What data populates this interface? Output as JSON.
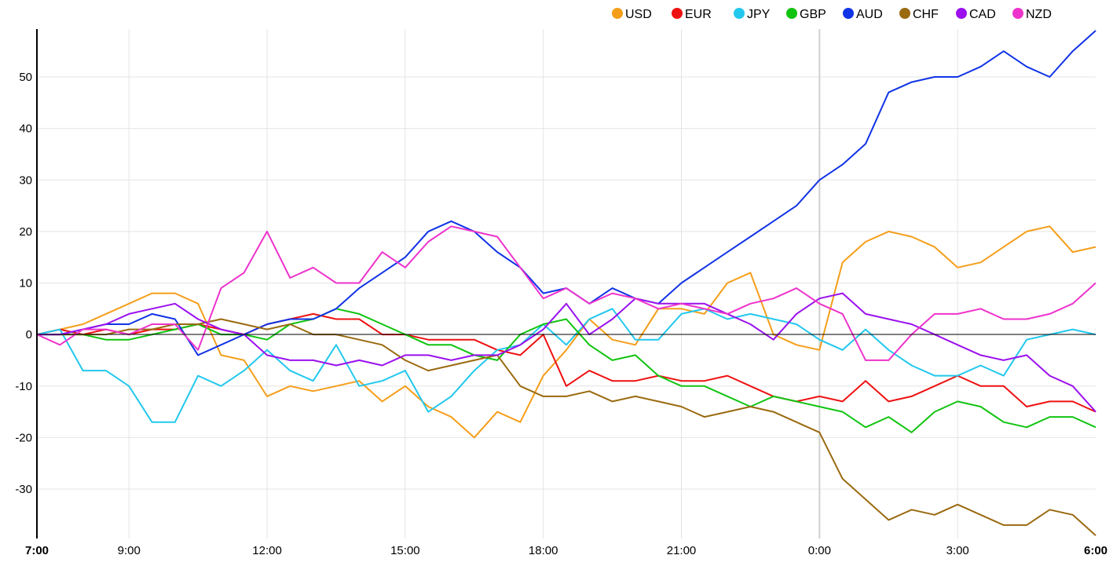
{
  "chart_data": {
    "type": "line",
    "title": "",
    "xlabel": "",
    "ylabel": "",
    "x": [
      "7:00",
      "7:30",
      "8:00",
      "8:30",
      "9:00",
      "9:30",
      "10:00",
      "10:30",
      "11:00",
      "11:30",
      "12:00",
      "12:30",
      "13:00",
      "13:30",
      "14:00",
      "14:30",
      "15:00",
      "15:30",
      "16:00",
      "16:30",
      "17:00",
      "17:30",
      "18:00",
      "18:30",
      "19:00",
      "19:30",
      "20:00",
      "20:30",
      "21:00",
      "21:30",
      "22:00",
      "22:30",
      "23:00",
      "23:30",
      "0:00",
      "0:30",
      "1:00",
      "1:30",
      "2:00",
      "2:30",
      "3:00",
      "3:30",
      "4:00",
      "4:30",
      "5:00",
      "5:30",
      "6:00"
    ],
    "x_ticks": [
      {
        "label": "7:00",
        "index": 0,
        "bold": true
      },
      {
        "label": "9:00",
        "index": 4,
        "bold": false
      },
      {
        "label": "12:00",
        "index": 10,
        "bold": false
      },
      {
        "label": "15:00",
        "index": 16,
        "bold": false
      },
      {
        "label": "18:00",
        "index": 22,
        "bold": false
      },
      {
        "label": "21:00",
        "index": 28,
        "bold": false
      },
      {
        "label": "0:00",
        "index": 34,
        "bold": false
      },
      {
        "label": "3:00",
        "index": 40,
        "bold": false
      },
      {
        "label": "6:00",
        "index": 46,
        "bold": true
      }
    ],
    "y_ticks": [
      -30,
      -20,
      -10,
      0,
      10,
      20,
      30,
      40,
      50
    ],
    "ylim": [
      -39.6,
      59.3
    ],
    "grid": true,
    "legend_position": "top-right",
    "series": [
      {
        "name": "USD",
        "color": "#f59e1a",
        "values": [
          0,
          1,
          2,
          4,
          6,
          8,
          8,
          6,
          -4,
          -5,
          -12,
          -10,
          -11,
          -10,
          -9,
          -13,
          -10,
          -14,
          -16,
          -20,
          -15,
          -17,
          -8,
          -3,
          3,
          -1,
          -2,
          5,
          5,
          4,
          10,
          12,
          0,
          -2,
          -3,
          14,
          18,
          20,
          19,
          17,
          13,
          14,
          17,
          20,
          21,
          16,
          17
        ]
      },
      {
        "name": "EUR",
        "color": "#ee1111",
        "values": [
          0,
          1,
          0,
          1,
          0,
          1,
          1,
          2,
          1,
          0,
          2,
          3,
          4,
          3,
          3,
          0,
          0,
          -1,
          -1,
          -1,
          -3,
          -4,
          0,
          -10,
          -7,
          -9,
          -9,
          -8,
          -9,
          -9,
          -8,
          -10,
          -12,
          -13,
          -12,
          -13,
          -9,
          -13,
          -12,
          -10,
          -8,
          -10,
          -10,
          -14,
          -13,
          -13,
          -15
        ]
      },
      {
        "name": "JPY",
        "color": "#22c8ee",
        "values": [
          0,
          1,
          -7,
          -7,
          -10,
          -17,
          -17,
          -8,
          -10,
          -7,
          -3,
          -7,
          -9,
          -2,
          -10,
          -9,
          -7,
          -15,
          -12,
          -7,
          -3,
          -2,
          2,
          -2,
          3,
          5,
          -1,
          -1,
          4,
          5,
          3,
          4,
          3,
          2,
          -1,
          -3,
          1,
          -3,
          -6,
          -8,
          -8,
          -6,
          -8,
          -1,
          0,
          1,
          0
        ]
      },
      {
        "name": "GBP",
        "color": "#11c411",
        "values": [
          0,
          0,
          0,
          -1,
          -1,
          0,
          1,
          2,
          0,
          0,
          -1,
          2,
          3,
          5,
          4,
          2,
          0,
          -2,
          -2,
          -4,
          -5,
          0,
          2,
          3,
          -2,
          -5,
          -4,
          -8,
          -10,
          -10,
          -12,
          -14,
          -12,
          -13,
          -14,
          -15,
          -18,
          -16,
          -19,
          -15,
          -13,
          -14,
          -17,
          -18,
          -16,
          -16,
          -18
        ]
      },
      {
        "name": "AUD",
        "color": "#1133e6",
        "values": [
          0,
          0,
          1,
          2,
          2,
          4,
          3,
          -4,
          -2,
          0,
          2,
          3,
          3,
          5,
          9,
          12,
          15,
          20,
          22,
          20,
          16,
          13,
          8,
          9,
          6,
          9,
          7,
          6,
          10,
          13,
          16,
          19,
          22,
          25,
          30,
          33,
          37,
          47,
          49,
          50,
          50,
          52,
          55,
          52,
          50,
          55,
          59
        ]
      },
      {
        "name": "CHF",
        "color": "#9a6a10",
        "values": [
          0,
          0,
          0,
          0,
          1,
          1,
          2,
          2,
          3,
          2,
          1,
          2,
          0,
          0,
          -1,
          -2,
          -5,
          -7,
          -6,
          -5,
          -4,
          -10,
          -12,
          -12,
          -11,
          -13,
          -12,
          -13,
          -14,
          -16,
          -15,
          -14,
          -15,
          -17,
          -19,
          -28,
          -32,
          -36,
          -34,
          -35,
          -33,
          -35,
          -37,
          -37,
          -34,
          -35,
          -39
        ]
      },
      {
        "name": "CAD",
        "color": "#9b11ee",
        "values": [
          0,
          0,
          1,
          2,
          4,
          5,
          6,
          3,
          1,
          0,
          -4,
          -5,
          -5,
          -6,
          -5,
          -6,
          -4,
          -4,
          -5,
          -4,
          -4,
          -2,
          1,
          6,
          0,
          3,
          7,
          6,
          6,
          6,
          4,
          2,
          -1,
          4,
          7,
          8,
          4,
          3,
          2,
          0,
          -2,
          -4,
          -5,
          -4,
          -8,
          -10,
          -15
        ]
      },
      {
        "name": "NZD",
        "color": "#ee33cc",
        "values": [
          0,
          -2,
          1,
          1,
          0,
          2,
          2,
          -3,
          9,
          12,
          20,
          11,
          13,
          10,
          10,
          16,
          13,
          18,
          21,
          20,
          19,
          13,
          7,
          9,
          6,
          8,
          7,
          5,
          6,
          5,
          4,
          6,
          7,
          9,
          6,
          4,
          -5,
          -5,
          0,
          4,
          4,
          5,
          3,
          3,
          4,
          6,
          10
        ]
      }
    ]
  }
}
